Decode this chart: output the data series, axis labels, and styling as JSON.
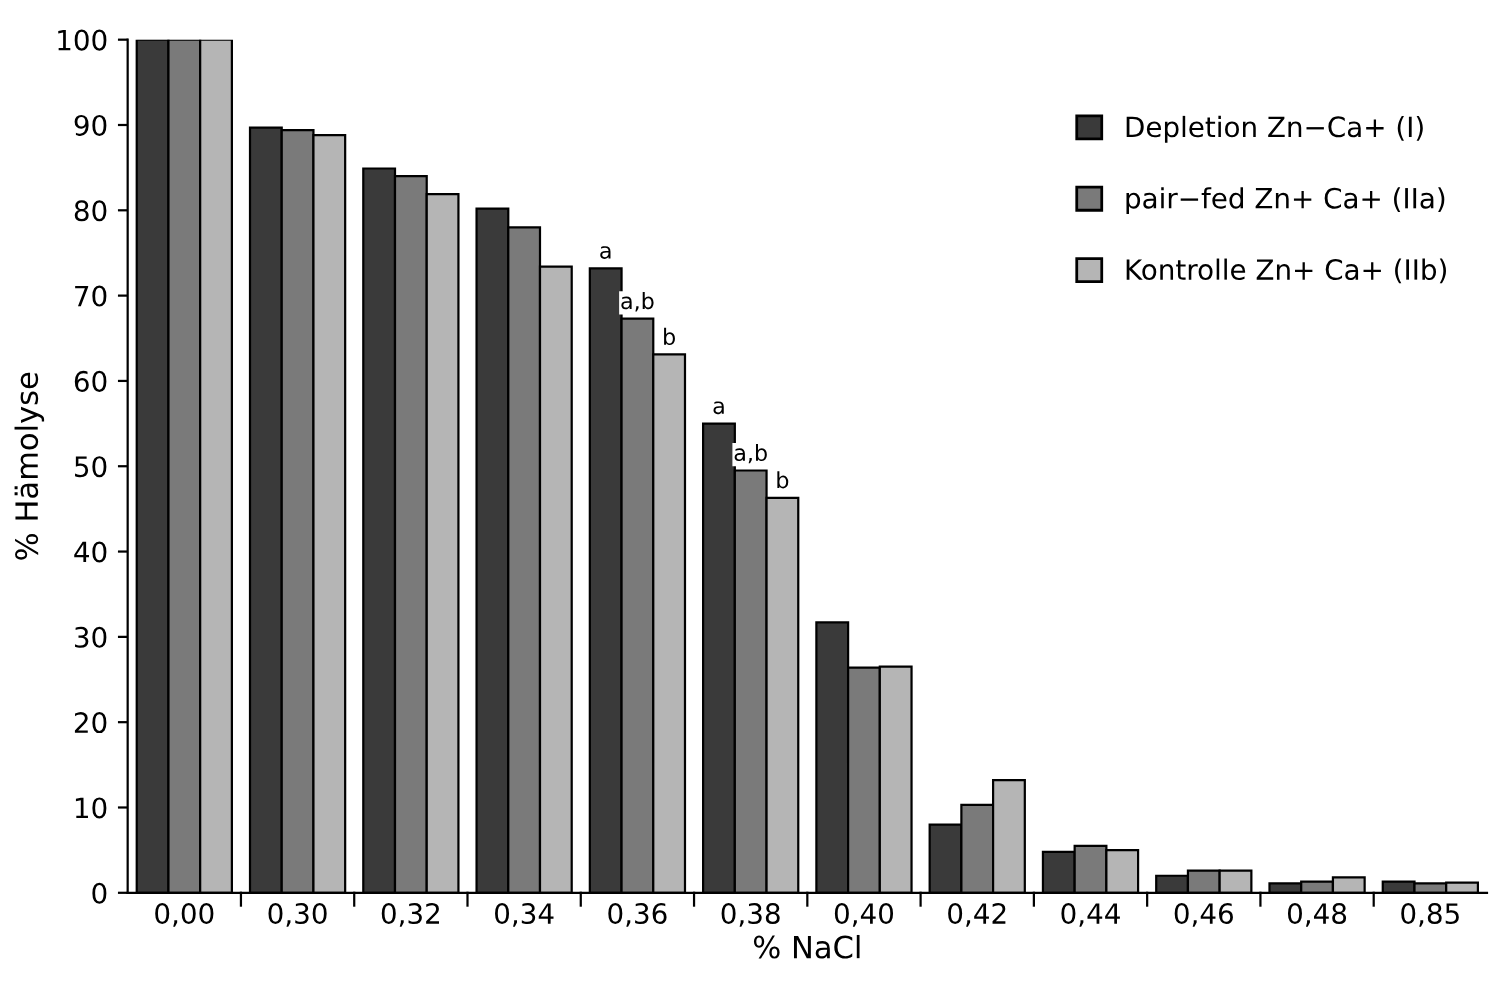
{
  "chart_data": {
    "type": "bar",
    "xlabel": "% NaCl",
    "ylabel": "% Hämolyse",
    "categories": [
      "0,00",
      "0,30",
      "0,32",
      "0,34",
      "0,36",
      "0,38",
      "0,40",
      "0,42",
      "0,44",
      "0,46",
      "0,48",
      "0,85"
    ],
    "series": [
      {
        "name": "Depletion Zn−Ca+ (I)",
        "color": "#3a3a3a",
        "values": [
          100,
          89.7,
          84.9,
          80.2,
          73.2,
          55.0,
          31.7,
          8.0,
          4.8,
          2.0,
          1.1,
          1.3
        ]
      },
      {
        "name": "pair−fed Zn+ Ca+ (IIa)",
        "color": "#7a7a7a",
        "values": [
          100,
          89.4,
          84.0,
          78.0,
          67.3,
          49.5,
          26.4,
          10.3,
          5.5,
          2.6,
          1.3,
          1.1
        ]
      },
      {
        "name": "Kontrolle Zn+ Ca+ (IIb)",
        "color": "#b5b5b5",
        "values": [
          100,
          88.8,
          81.9,
          73.4,
          63.1,
          46.3,
          26.5,
          13.2,
          5.0,
          2.6,
          1.8,
          1.2
        ]
      }
    ],
    "ylim": [
      0,
      100
    ],
    "yticks": [
      0,
      10,
      20,
      30,
      40,
      50,
      60,
      70,
      80,
      90,
      100
    ],
    "annotations": [
      "a",
      "a,b",
      "b",
      "a",
      "a,b",
      "b"
    ],
    "legend": "top right",
    "grid": false
  }
}
